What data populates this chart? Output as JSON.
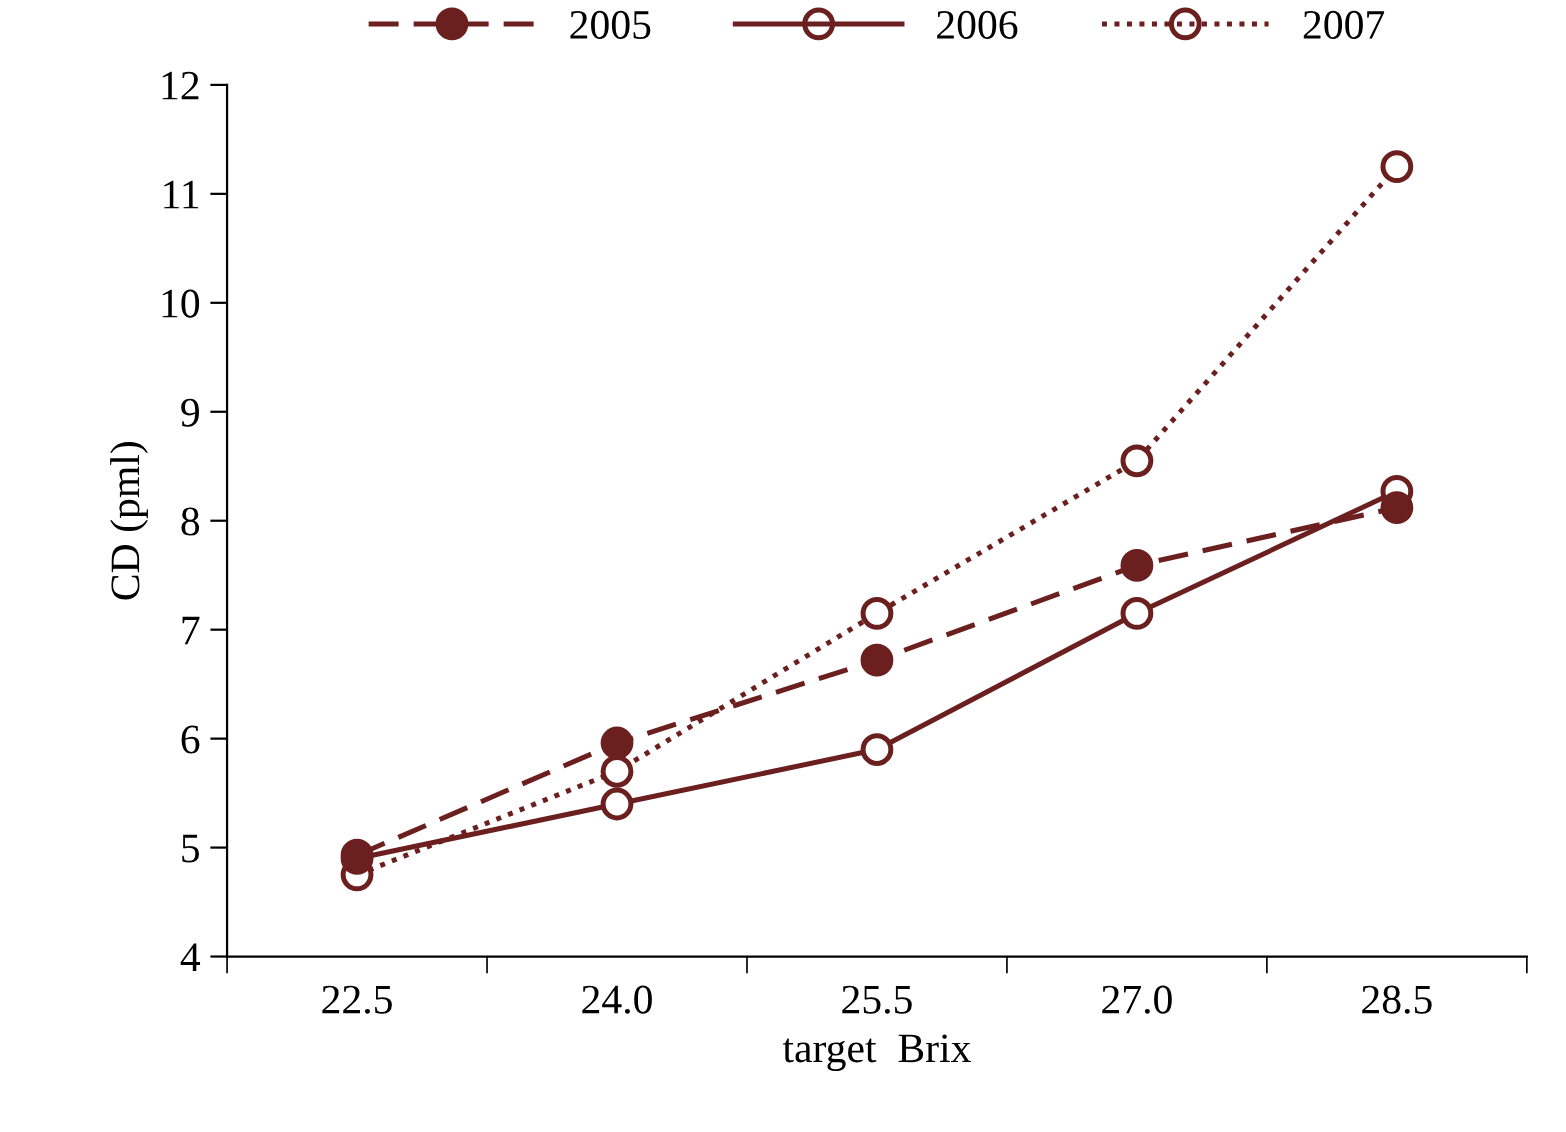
{
  "chart_data": {
    "type": "line",
    "xlabel": "target  Brix",
    "ylabel": "CD (pml)",
    "categories": [
      "22.5",
      "24.0",
      "25.5",
      "27.0",
      "28.5"
    ],
    "series": [
      {
        "name": "2005",
        "color": "#6b1f1f",
        "line_style": "dashed",
        "marker": "circle",
        "values": [
          4.93,
          5.96,
          6.72,
          7.59,
          8.12
        ]
      },
      {
        "name": "2006",
        "color": "#6b1f1f",
        "line_style": "solid",
        "marker": "circle",
        "values": [
          4.9,
          5.4,
          5.9,
          7.15,
          8.27
        ]
      },
      {
        "name": "2007",
        "color": "#6b1f1f",
        "line_style": "dotted",
        "marker": "circle",
        "values": [
          4.75,
          5.7,
          7.15,
          8.55,
          11.25
        ]
      }
    ],
    "ylim": [
      4,
      12
    ],
    "yticks": [
      4,
      5,
      6,
      7,
      8,
      9,
      10,
      11,
      12
    ],
    "grid": false,
    "legend": "top"
  }
}
